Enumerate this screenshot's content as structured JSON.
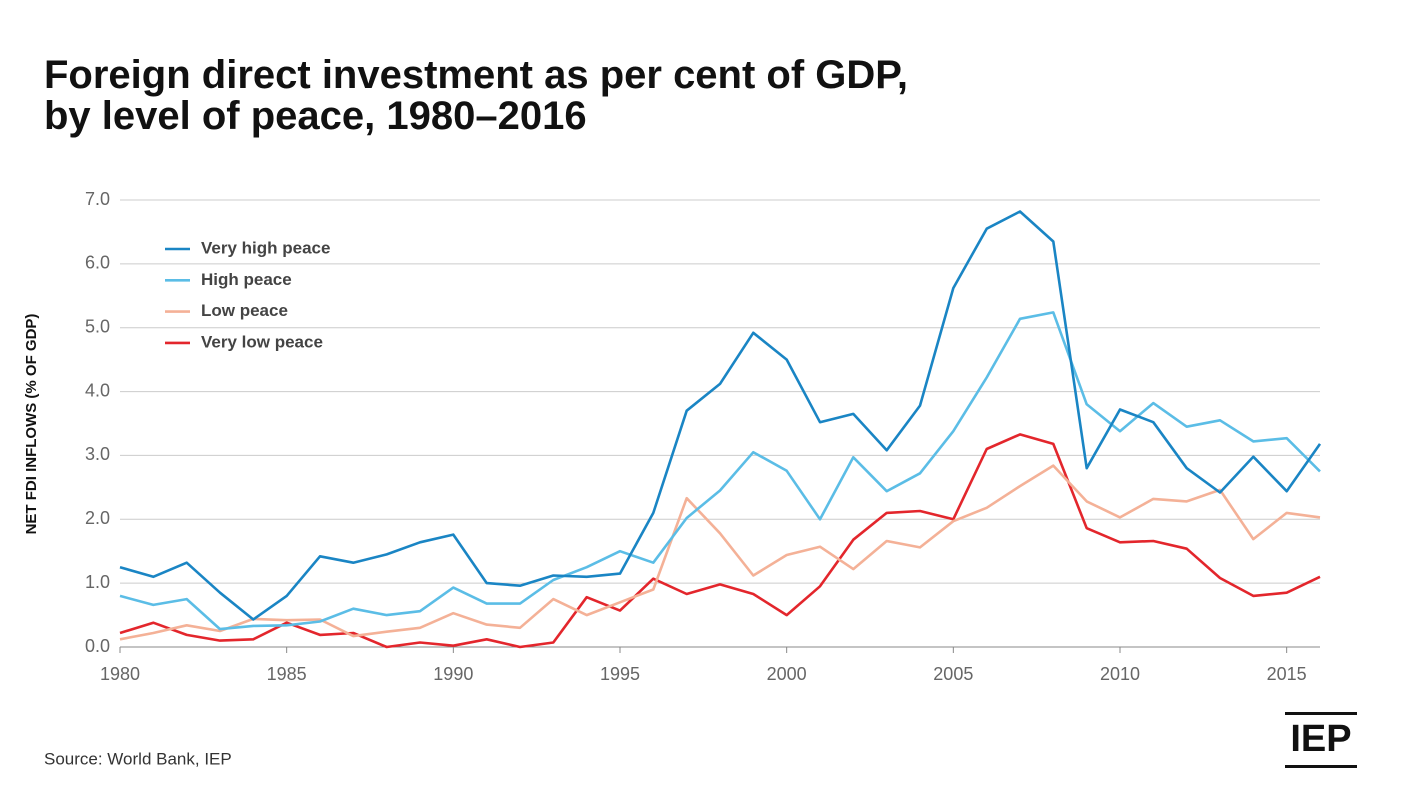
{
  "chart_data": {
    "type": "line",
    "title": [
      "Foreign direct investment as per cent of GDP,",
      "by level of peace, 1980–2016"
    ],
    "y_label": "NET FDI INFLOWS (% OF GDP)",
    "source": "Source: World Bank, IEP",
    "logo": "IEP",
    "x": [
      1980,
      1981,
      1982,
      1983,
      1984,
      1985,
      1986,
      1987,
      1988,
      1989,
      1990,
      1991,
      1992,
      1993,
      1994,
      1995,
      1996,
      1997,
      1998,
      1999,
      2000,
      2001,
      2002,
      2003,
      2004,
      2005,
      2006,
      2007,
      2008,
      2009,
      2010,
      2011,
      2012,
      2013,
      2014,
      2015,
      2016
    ],
    "xlim": [
      1980,
      2016
    ],
    "xticks": [
      1980,
      1985,
      1990,
      1995,
      2000,
      2005,
      2010,
      2015
    ],
    "ylim": [
      0,
      7
    ],
    "yticks": [
      {
        "value": 0,
        "label": "0.0"
      },
      {
        "value": 1,
        "label": "1.0"
      },
      {
        "value": 2,
        "label": "2.0"
      },
      {
        "value": 3,
        "label": "3.0"
      },
      {
        "value": 4,
        "label": "4.0"
      },
      {
        "value": 5,
        "label": "5.0"
      },
      {
        "value": 6,
        "label": "6.0"
      },
      {
        "value": 7,
        "label": "7.0"
      }
    ],
    "grid": true,
    "legend": "upper left",
    "series": [
      {
        "name": "Very high peace",
        "color": "#1a85c4",
        "values": [
          1.25,
          1.1,
          1.32,
          0.85,
          0.43,
          0.8,
          1.42,
          1.32,
          1.45,
          1.64,
          1.76,
          1.0,
          0.96,
          1.12,
          1.1,
          1.15,
          2.1,
          3.7,
          4.12,
          4.92,
          4.5,
          3.52,
          3.65,
          3.08,
          3.78,
          5.62,
          6.55,
          6.82,
          6.35,
          2.8,
          3.72,
          3.52,
          2.8,
          2.42,
          2.98,
          2.44,
          3.18
        ]
      },
      {
        "name": "High peace",
        "color": "#5bbde6",
        "values": [
          0.8,
          0.66,
          0.75,
          0.28,
          0.33,
          0.34,
          0.4,
          0.6,
          0.5,
          0.56,
          0.93,
          0.68,
          0.68,
          1.05,
          1.25,
          1.5,
          1.32,
          2.02,
          2.45,
          3.05,
          2.76,
          2.0,
          2.97,
          2.44,
          2.72,
          3.38,
          4.22,
          5.14,
          5.24,
          3.8,
          3.38,
          3.82,
          3.45,
          3.55,
          3.22,
          3.27,
          2.75
        ]
      },
      {
        "name": "Low peace",
        "color": "#f4b197",
        "values": [
          0.12,
          0.22,
          0.34,
          0.25,
          0.44,
          0.42,
          0.43,
          0.17,
          0.24,
          0.3,
          0.53,
          0.35,
          0.3,
          0.75,
          0.5,
          0.7,
          0.9,
          2.33,
          1.78,
          1.12,
          1.44,
          1.57,
          1.22,
          1.66,
          1.56,
          1.97,
          2.18,
          2.52,
          2.84,
          2.28,
          2.03,
          2.32,
          2.28,
          2.46,
          1.69,
          2.1,
          2.03
        ]
      },
      {
        "name": "Very low peace",
        "color": "#e3262c",
        "values": [
          0.22,
          0.38,
          0.19,
          0.1,
          0.12,
          0.38,
          0.19,
          0.22,
          0.0,
          0.07,
          0.02,
          0.12,
          0.0,
          0.07,
          0.78,
          0.57,
          1.07,
          0.83,
          0.98,
          0.83,
          0.5,
          0.95,
          1.68,
          2.1,
          2.13,
          2.0,
          3.1,
          3.33,
          3.18,
          1.86,
          1.64,
          1.66,
          1.54,
          1.08,
          0.8,
          0.85,
          1.1
        ]
      }
    ]
  }
}
